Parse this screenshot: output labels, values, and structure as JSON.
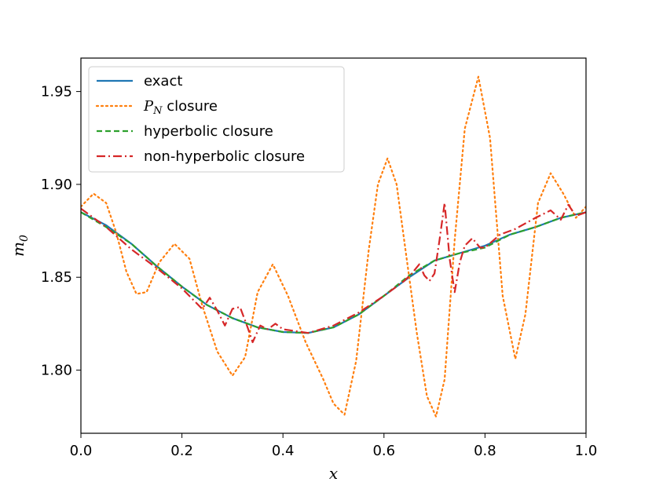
{
  "chart_data": {
    "type": "line",
    "xlabel": "x",
    "ylabel_base": "m",
    "ylabel_sub": "0",
    "xlim": [
      0.0,
      1.0
    ],
    "ylim": [
      1.766,
      1.968
    ],
    "xticks": [
      "0.0",
      "0.2",
      "0.4",
      "0.6",
      "0.8",
      "1.0"
    ],
    "yticks": [
      "1.80",
      "1.85",
      "1.90",
      "1.95"
    ],
    "grid": false,
    "legend_position": "upper-left",
    "series": [
      {
        "name": "exact",
        "color": "#1f77b4",
        "style": "solid",
        "x": [
          0.0,
          0.05,
          0.1,
          0.15,
          0.2,
          0.25,
          0.3,
          0.35,
          0.4,
          0.45,
          0.5,
          0.55,
          0.6,
          0.65,
          0.7,
          0.75,
          0.8,
          0.85,
          0.9,
          0.95,
          1.0
        ],
        "y": [
          1.885,
          1.878,
          1.868,
          1.856,
          1.845,
          1.835,
          1.828,
          1.823,
          1.8205,
          1.82,
          1.823,
          1.83,
          1.84,
          1.85,
          1.859,
          1.863,
          1.867,
          1.873,
          1.877,
          1.882,
          1.885
        ]
      },
      {
        "name_base": "P",
        "name_sub": "N",
        "name_suffix": " closure",
        "color": "#ff7f0e",
        "style": "dotted",
        "x": [
          0.0,
          0.025,
          0.05,
          0.07,
          0.09,
          0.11,
          0.13,
          0.155,
          0.185,
          0.215,
          0.24,
          0.27,
          0.3,
          0.325,
          0.35,
          0.38,
          0.41,
          0.445,
          0.48,
          0.5,
          0.522,
          0.545,
          0.57,
          0.588,
          0.607,
          0.625,
          0.645,
          0.665,
          0.685,
          0.703,
          0.72,
          0.74,
          0.76,
          0.787,
          0.81,
          0.835,
          0.86,
          0.88,
          0.905,
          0.93,
          0.955,
          0.98,
          1.0
        ],
        "y": [
          1.888,
          1.895,
          1.89,
          1.874,
          1.853,
          1.841,
          1.842,
          1.858,
          1.868,
          1.86,
          1.835,
          1.81,
          1.797,
          1.807,
          1.842,
          1.857,
          1.84,
          1.815,
          1.795,
          1.782,
          1.776,
          1.805,
          1.865,
          1.9,
          1.914,
          1.9,
          1.86,
          1.82,
          1.786,
          1.775,
          1.795,
          1.87,
          1.93,
          1.958,
          1.925,
          1.84,
          1.806,
          1.83,
          1.89,
          1.906,
          1.895,
          1.882,
          1.888
        ]
      },
      {
        "name": "hyperbolic closure",
        "color": "#2ca02c",
        "style": "dashed",
        "x": [
          0.0,
          0.05,
          0.1,
          0.15,
          0.2,
          0.25,
          0.3,
          0.35,
          0.4,
          0.45,
          0.5,
          0.55,
          0.6,
          0.65,
          0.7,
          0.75,
          0.8,
          0.85,
          0.9,
          0.95,
          1.0
        ],
        "y": [
          1.885,
          1.877,
          1.868,
          1.856,
          1.845,
          1.835,
          1.828,
          1.823,
          1.8205,
          1.82,
          1.823,
          1.83,
          1.84,
          1.851,
          1.859,
          1.863,
          1.866,
          1.873,
          1.877,
          1.882,
          1.885
        ]
      },
      {
        "name": "non-hyperbolic closure",
        "color": "#d62728",
        "style": "dashdot",
        "x": [
          0.0,
          0.05,
          0.1,
          0.15,
          0.2,
          0.24,
          0.255,
          0.27,
          0.285,
          0.3,
          0.315,
          0.33,
          0.34,
          0.355,
          0.37,
          0.385,
          0.4,
          0.45,
          0.5,
          0.55,
          0.6,
          0.64,
          0.655,
          0.67,
          0.68,
          0.69,
          0.7,
          0.71,
          0.72,
          0.73,
          0.74,
          0.75,
          0.76,
          0.775,
          0.79,
          0.8,
          0.83,
          0.86,
          0.9,
          0.93,
          0.95,
          0.965,
          0.98,
          1.0
        ],
        "y": [
          1.887,
          1.877,
          1.865,
          1.855,
          1.844,
          1.833,
          1.839,
          1.832,
          1.824,
          1.833,
          1.834,
          1.823,
          1.815,
          1.824,
          1.822,
          1.825,
          1.822,
          1.82,
          1.824,
          1.831,
          1.84,
          1.848,
          1.852,
          1.857,
          1.851,
          1.848,
          1.852,
          1.87,
          1.89,
          1.86,
          1.842,
          1.858,
          1.867,
          1.871,
          1.866,
          1.866,
          1.873,
          1.876,
          1.882,
          1.886,
          1.881,
          1.889,
          1.883,
          1.885
        ]
      }
    ]
  }
}
